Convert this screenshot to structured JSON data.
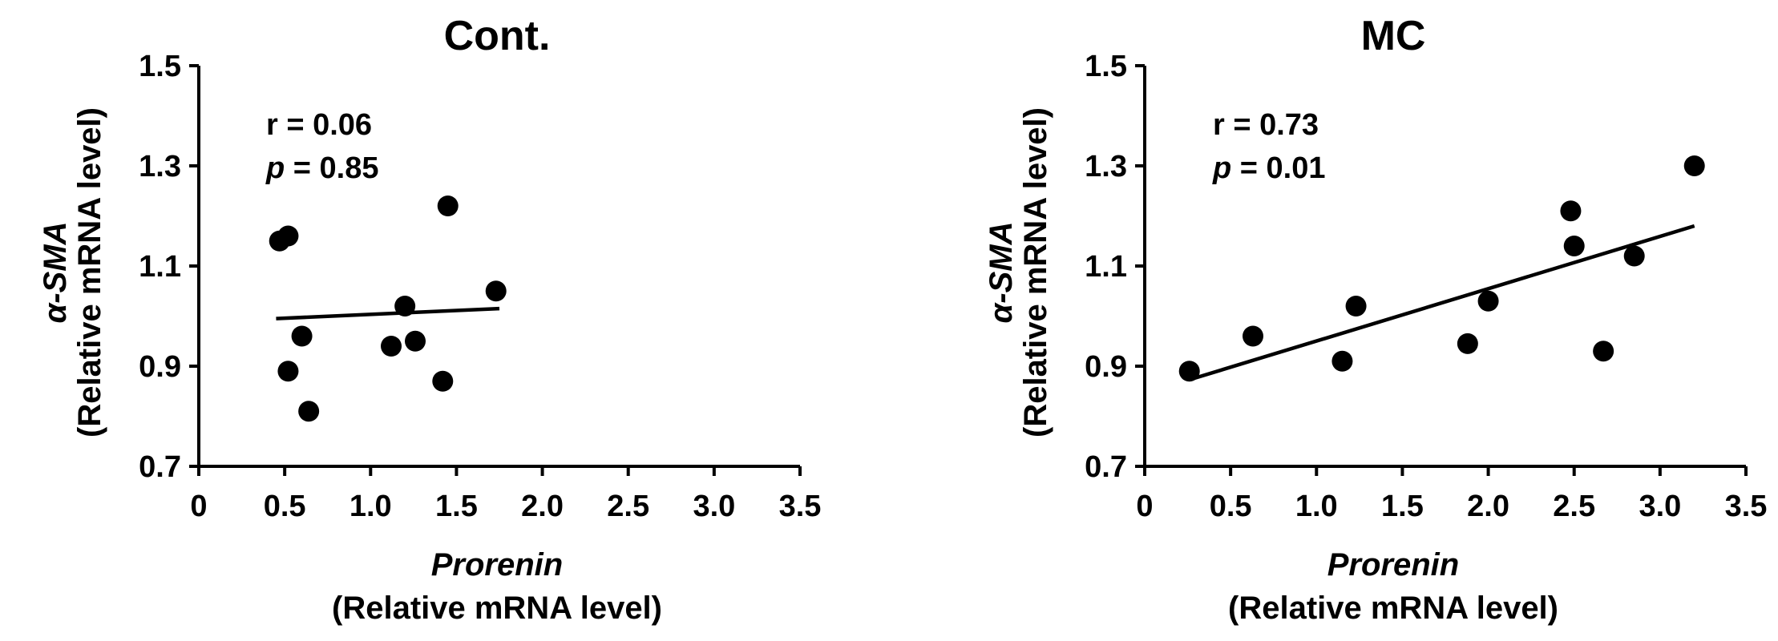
{
  "chart_data": [
    {
      "type": "scatter",
      "title": "Cont.",
      "xlabel": "Prorenin",
      "xlabel_sub": "(Relative mRNA level)",
      "ylabel": "α-SMA",
      "ylabel_sub": "(Relative mRNA level)",
      "xlim": [
        0,
        3.5
      ],
      "ylim": [
        0.7,
        1.5
      ],
      "xticks": [
        "0",
        "0.5",
        "1.0",
        "1.5",
        "2.0",
        "2.5",
        "3.0",
        "3.5"
      ],
      "yticks": [
        "0.7",
        "0.9",
        "1.1",
        "1.3",
        "1.5"
      ],
      "stats": {
        "r_label": "r = 0.06",
        "p_symbol": "p",
        "p_value": " = 0.85"
      },
      "points": [
        {
          "x": 0.47,
          "y": 1.15
        },
        {
          "x": 0.52,
          "y": 1.16
        },
        {
          "x": 0.52,
          "y": 0.89
        },
        {
          "x": 0.6,
          "y": 0.96
        },
        {
          "x": 0.64,
          "y": 0.81
        },
        {
          "x": 1.12,
          "y": 0.94
        },
        {
          "x": 1.2,
          "y": 1.02
        },
        {
          "x": 1.26,
          "y": 0.95
        },
        {
          "x": 1.42,
          "y": 0.87
        },
        {
          "x": 1.45,
          "y": 1.22
        },
        {
          "x": 1.73,
          "y": 1.05
        }
      ],
      "fit_line": {
        "x": [
          0.45,
          1.75
        ],
        "y": [
          0.995,
          1.015
        ]
      }
    },
    {
      "type": "scatter",
      "title": "MC",
      "xlabel": "Prorenin",
      "xlabel_sub": "(Relative mRNA level)",
      "ylabel": "α-SMA",
      "ylabel_sub": "(Relative mRNA level)",
      "xlim": [
        0,
        3.5
      ],
      "ylim": [
        0.7,
        1.5
      ],
      "xticks": [
        "0",
        "0.5",
        "1.0",
        "1.5",
        "2.0",
        "2.5",
        "3.0",
        "3.5"
      ],
      "yticks": [
        "0.7",
        "0.9",
        "1.1",
        "1.3",
        "1.5"
      ],
      "stats": {
        "r_label": "r = 0.73",
        "p_symbol": "p",
        "p_value": " = 0.01"
      },
      "points": [
        {
          "x": 0.26,
          "y": 0.89
        },
        {
          "x": 0.63,
          "y": 0.96
        },
        {
          "x": 1.15,
          "y": 0.91
        },
        {
          "x": 1.23,
          "y": 1.02
        },
        {
          "x": 1.88,
          "y": 0.945
        },
        {
          "x": 2.0,
          "y": 1.03
        },
        {
          "x": 2.48,
          "y": 1.21
        },
        {
          "x": 2.5,
          "y": 1.14
        },
        {
          "x": 2.67,
          "y": 0.93
        },
        {
          "x": 2.85,
          "y": 1.12
        },
        {
          "x": 3.2,
          "y": 1.3
        }
      ],
      "fit_line": {
        "x": [
          0.28,
          3.2
        ],
        "y": [
          0.875,
          1.18
        ]
      }
    }
  ]
}
